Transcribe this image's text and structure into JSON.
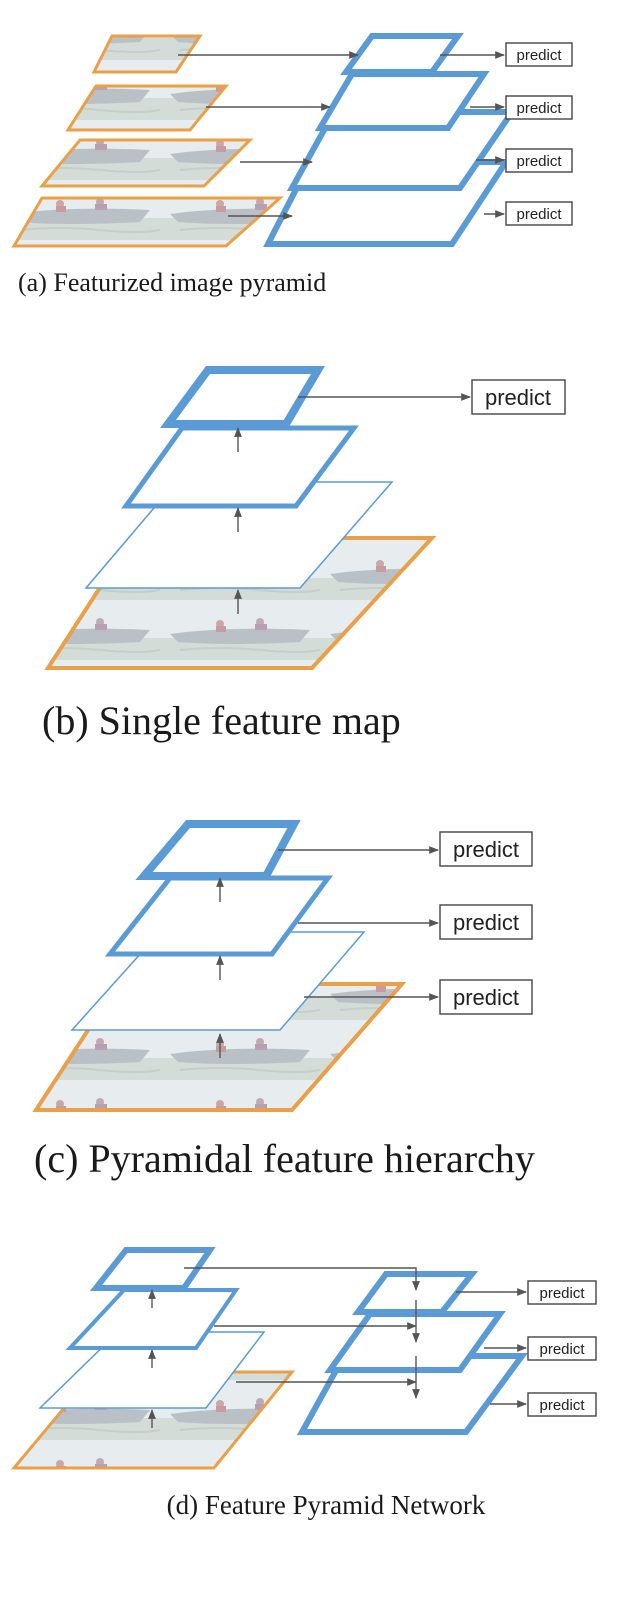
{
  "predict_label": "predict",
  "captions": {
    "a": "(a) Featurized image pyramid",
    "b": "(b) Single feature map",
    "c": "(c) Pyramidal feature hierarchy",
    "d": "(d) Feature Pyramid Network"
  },
  "colors": {
    "feature_map": "#5b9bd5",
    "image_border": "#e8a04a",
    "arrow": "#555555"
  }
}
